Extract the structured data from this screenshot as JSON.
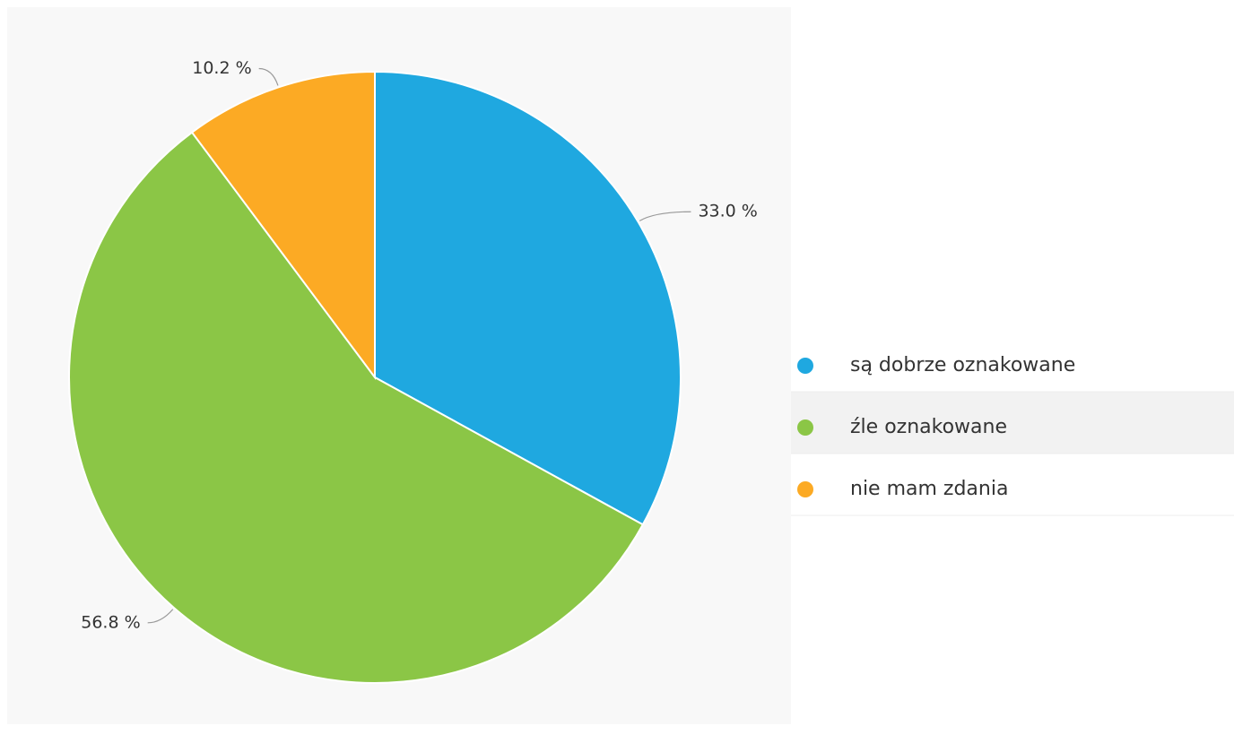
{
  "chart_data": {
    "type": "pie",
    "categories": [
      "są dobrze oznakowane",
      "źle oznakowane",
      "nie mam zdania"
    ],
    "values": [
      33.0,
      56.8,
      10.2
    ],
    "value_labels": [
      "33.0 %",
      "56.8 %",
      "10.2 %"
    ],
    "colors": [
      "#1fa8e0",
      "#8bc646",
      "#fcaa24"
    ]
  }
}
